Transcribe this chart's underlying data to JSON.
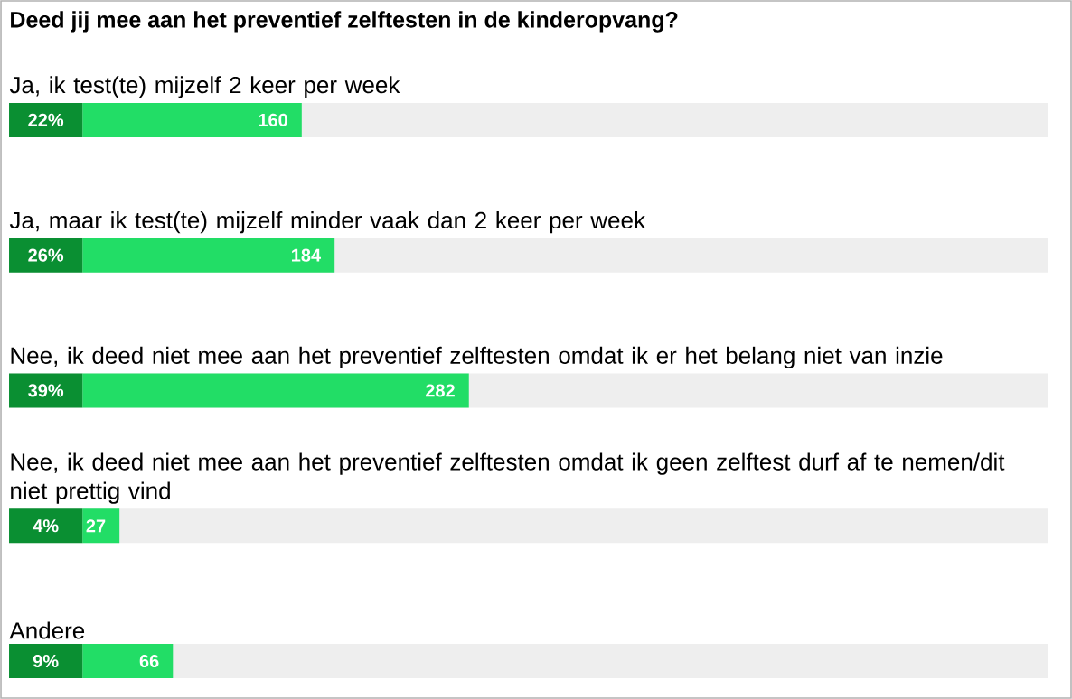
{
  "chart_data": {
    "type": "bar",
    "orientation": "horizontal",
    "title": "Deed jij mee aan het preventief zelftesten in de kinderopvang?",
    "categories": [
      "Ja, ik test(te) mijzelf 2 keer per week",
      "Ja, maar ik test(te) mijzelf minder vaak dan 2 keer per week",
      "Nee, ik deed niet mee aan het preventief zelftesten omdat ik er het belang niet van inzie",
      "Nee, ik deed niet mee aan het preventief zelftesten omdat ik geen zelftest durf af te nemen/dit niet prettig vind",
      "Andere"
    ],
    "values": [
      160,
      184,
      282,
      27,
      66
    ],
    "color": "#22dd66",
    "data_labels": true,
    "annotations": [
      "22%",
      "26%",
      "39%",
      "4%",
      "9%"
    ]
  }
}
